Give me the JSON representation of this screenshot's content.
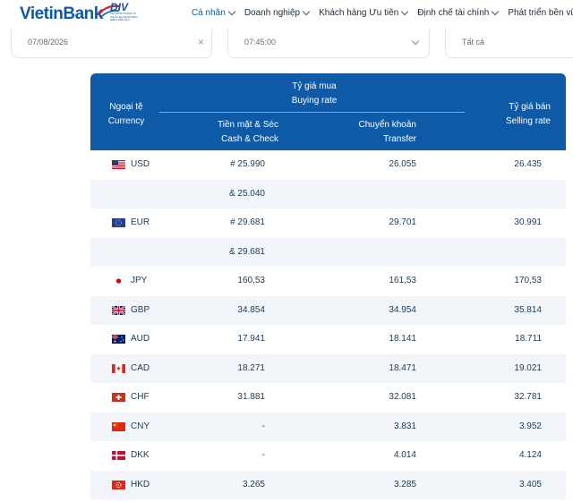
{
  "header": {
    "brand": "VietinBank",
    "badge_main": "DIV",
    "badge_sub": "CHƯƠNG TRÌNH TỔ CHỨC ĐA DẠNG BẢO HIỂM TIỀN GỬI",
    "nav": [
      {
        "label": "Cá nhân",
        "active": true
      },
      {
        "label": "Doanh nghiệp",
        "active": false
      },
      {
        "label": "Khách hàng Ưu tiên",
        "active": false
      },
      {
        "label": "Định chế tài chính",
        "active": false
      },
      {
        "label": "Phát triển bền vững",
        "active": false
      }
    ]
  },
  "filters": {
    "date": "07/08/2026",
    "time": "07:45:00",
    "type": "Tất cả"
  },
  "table": {
    "head": {
      "ngoai_te": "Ngoại tệ",
      "currency": "Currency",
      "buy": "Tỷ giá mua",
      "buy_en": "Buying rate",
      "cash": "Tiền mặt & Séc",
      "cash_en": "Cash & Check",
      "transfer": "Chuyển khoản",
      "transfer_en": "Transfer",
      "sell": "Tỷ giá bán",
      "sell_en": "Selling rate"
    },
    "rows": [
      {
        "flag": "us-flag-icon",
        "code": "USD",
        "cash": "# 25.990",
        "transfer": "26.055",
        "sell": "26.435"
      },
      {
        "flag": "",
        "code": "",
        "cash": "& 25.040",
        "transfer": "",
        "sell": ""
      },
      {
        "flag": "eu-flag-icon",
        "code": "EUR",
        "cash": "# 29.681",
        "transfer": "29.701",
        "sell": "30.991"
      },
      {
        "flag": "",
        "code": "",
        "cash": "& 29.681",
        "transfer": "",
        "sell": ""
      },
      {
        "flag": "jp-flag-icon",
        "code": "JPY",
        "cash": "160,53",
        "transfer": "161,53",
        "sell": "170,53"
      },
      {
        "flag": "gb-flag-icon",
        "code": "GBP",
        "cash": "34.854",
        "transfer": "34.954",
        "sell": "35.814"
      },
      {
        "flag": "au-flag-icon",
        "code": "AUD",
        "cash": "17.941",
        "transfer": "18.141",
        "sell": "18.711"
      },
      {
        "flag": "ca-flag-icon",
        "code": "CAD",
        "cash": "18.271",
        "transfer": "18.471",
        "sell": "19.021"
      },
      {
        "flag": "ch-flag-icon",
        "code": "CHF",
        "cash": "31.881",
        "transfer": "32.081",
        "sell": "32.781"
      },
      {
        "flag": "cn-flag-icon",
        "code": "CNY",
        "cash": "-",
        "transfer": "3.831",
        "sell": "3.952"
      },
      {
        "flag": "dk-flag-icon",
        "code": "DKK",
        "cash": "-",
        "transfer": "4.014",
        "sell": "4.124"
      },
      {
        "flag": "hk-flag-icon",
        "code": "HKD",
        "cash": "3.265",
        "transfer": "3.285",
        "sell": "3.405"
      }
    ]
  },
  "colors": {
    "brand_blue": "#0e5aa7",
    "row_alt": "#f2f6fa"
  }
}
